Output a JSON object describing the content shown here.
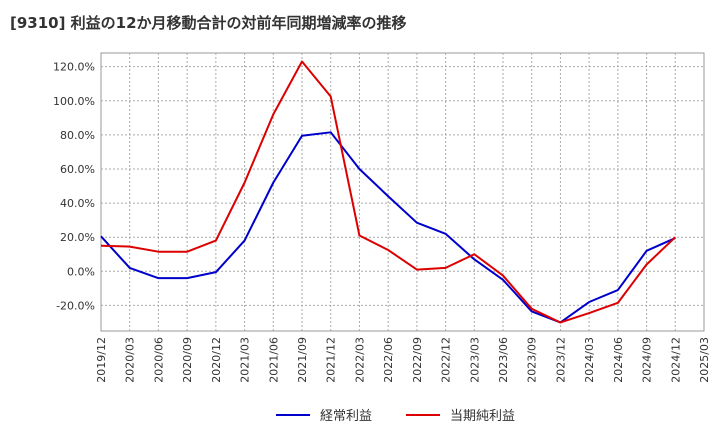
{
  "chart_data": {
    "type": "line",
    "title": "[9310]  利益の12か月移動合計の対前年同期増減率の推移",
    "x": [
      "2019/12",
      "2020/03",
      "2020/06",
      "2020/09",
      "2020/12",
      "2021/03",
      "2021/06",
      "2021/09",
      "2021/12",
      "2022/03",
      "2022/06",
      "2022/09",
      "2022/12",
      "2023/03",
      "2023/06",
      "2023/09",
      "2023/12",
      "2024/03",
      "2024/06",
      "2024/09",
      "2024/12",
      "2025/03"
    ],
    "ylim": [
      -35,
      128
    ],
    "yticks": [
      -20,
      0,
      20,
      40,
      60,
      80,
      100,
      120
    ],
    "ytick_labels": [
      "-20.0%",
      "0.0%",
      "20.0%",
      "40.0%",
      "60.0%",
      "80.0%",
      "100.0%",
      "120.0%"
    ],
    "grid": true,
    "legend_position": "bottom",
    "series": [
      {
        "name": "経常利益",
        "color": "#0000cc",
        "values": [
          20.5,
          2,
          -4,
          -4,
          -0.5,
          18,
          52,
          79.5,
          81.5,
          60,
          44,
          28.5,
          22,
          7,
          -5,
          -23.5,
          -30,
          -18,
          -11,
          12,
          19.5,
          null
        ]
      },
      {
        "name": "当期純利益",
        "color": "#dd0000",
        "values": [
          15,
          14.5,
          11.5,
          11.5,
          18,
          52,
          92,
          123,
          102.5,
          21,
          12.5,
          1,
          2,
          10,
          -2.5,
          -22,
          -30,
          -24.5,
          -18.5,
          4,
          20,
          null
        ]
      }
    ]
  }
}
